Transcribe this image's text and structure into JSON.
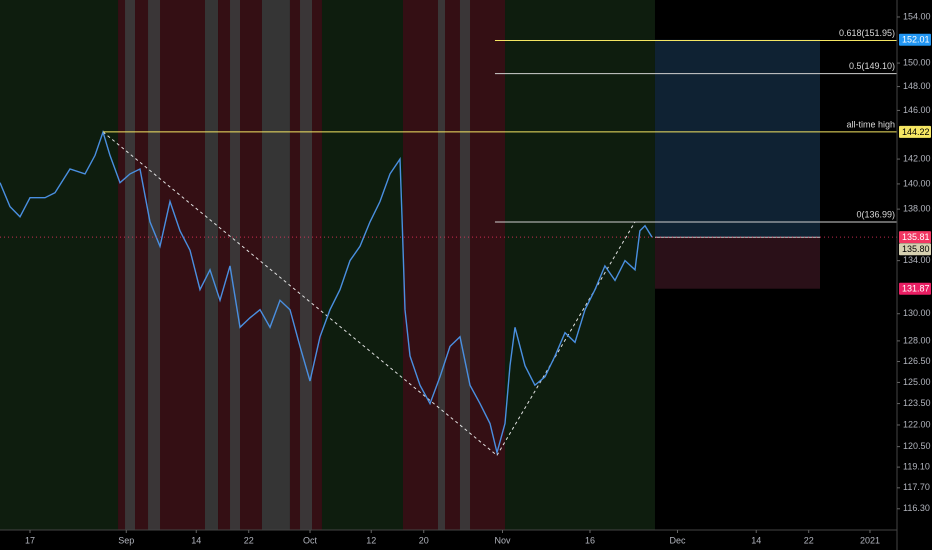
{
  "chart_data": {
    "type": "line",
    "log_scale": true,
    "color": "#4a8fe0",
    "x": [
      -3.43,
      -2.29,
      -1.14,
      0,
      1.71,
      2.86,
      4.57,
      6.29,
      7.43,
      8.34,
      9.14,
      10.29,
      11.43,
      12.57,
      13.71,
      14.86,
      16,
      17.14,
      18.29,
      19.43,
      20.57,
      21.71,
      22.86,
      24,
      25.14,
      26.29,
      27.43,
      28.57,
      29.71,
      30.86,
      32,
      33.14,
      34.29,
      35.43,
      36.57,
      37.71,
      38.86,
      40,
      41.14,
      42.29,
      42.51,
      42.86,
      43.43,
      44.57,
      45.71,
      46.86,
      48,
      49.14,
      50.29,
      51.43,
      52.57,
      53.37,
      54.29,
      54.86,
      55.43,
      56.57,
      57.71,
      58.86,
      60,
      61.14,
      62.29,
      63.43,
      64.57,
      65.71,
      66.86,
      68,
      69.14,
      69.71,
      70.29,
      71.09
    ],
    "values": [
      140.1,
      138.2,
      137.4,
      138.9,
      138.9,
      139.3,
      141.2,
      140.8,
      142.3,
      144.2,
      142.3,
      140.1,
      140.8,
      141.2,
      137.0,
      135.1,
      138.6,
      136.3,
      134.8,
      131.8,
      133.3,
      131.0,
      133.6,
      129.0,
      129.7,
      130.3,
      129.0,
      131.0,
      130.3,
      127.6,
      125.1,
      128.3,
      130.3,
      131.8,
      134.0,
      135.1,
      137.0,
      138.6,
      140.8,
      142.0,
      137.4,
      130.3,
      126.9,
      124.8,
      123.5,
      125.4,
      127.6,
      128.3,
      124.8,
      123.5,
      122.1,
      120.1,
      122.1,
      126.2,
      129.0,
      126.2,
      124.8,
      125.4,
      126.9,
      128.6,
      127.9,
      130.3,
      131.8,
      133.6,
      132.5,
      134.0,
      133.3,
      136.3,
      136.7,
      135.81
    ],
    "xlim": [
      -3.43,
      99.09
    ],
    "ylim": [
      114.9,
      155.5
    ],
    "xticks": [
      {
        "value": 0,
        "label": "17"
      },
      {
        "value": 11,
        "label": "Sep"
      },
      {
        "value": 19,
        "label": "14"
      },
      {
        "value": 25,
        "label": "22"
      },
      {
        "value": 32,
        "label": "Oct"
      },
      {
        "value": 39,
        "label": "12"
      },
      {
        "value": 45,
        "label": "20"
      },
      {
        "value": 54,
        "label": "Nov"
      },
      {
        "value": 64,
        "label": "16"
      },
      {
        "value": 74,
        "label": "Dec"
      },
      {
        "value": 83,
        "label": "14"
      },
      {
        "value": 89,
        "label": "22"
      },
      {
        "value": 96,
        "label": "2021"
      }
    ],
    "yticks": [
      {
        "value": 154,
        "label": "154.00"
      },
      {
        "value": 150,
        "label": "150.00"
      },
      {
        "value": 148,
        "label": "148.00"
      },
      {
        "value": 146,
        "label": "146.00"
      },
      {
        "value": 142,
        "label": "142.00"
      },
      {
        "value": 140,
        "label": "140.00"
      },
      {
        "value": 138,
        "label": "138.00"
      },
      {
        "value": 134,
        "label": "134.00"
      },
      {
        "value": 130,
        "label": "130.00"
      },
      {
        "value": 128,
        "label": "128.00"
      },
      {
        "value": 126.5,
        "label": "126.50"
      },
      {
        "value": 125,
        "label": "125.00"
      },
      {
        "value": 123.5,
        "label": "123.50"
      },
      {
        "value": 122,
        "label": "122.00"
      },
      {
        "value": 120.5,
        "label": "120.50"
      },
      {
        "value": 119.1,
        "label": "119.10"
      },
      {
        "value": 117.7,
        "label": "117.70"
      },
      {
        "value": 116.3,
        "label": "116.30"
      }
    ],
    "grid": false,
    "regions": [
      {
        "x_start": -3.43,
        "x_end": 10.06,
        "color": "#0f200f"
      },
      {
        "x_start": 10.06,
        "x_end": 20,
        "color": "#3a1116"
      },
      {
        "x_start": 20,
        "x_end": 21.49,
        "color": "#3b3b3b"
      },
      {
        "x_start": 21.49,
        "x_end": 26.51,
        "color": "#3a1116"
      },
      {
        "x_start": 26.51,
        "x_end": 29.71,
        "color": "#3b3b3b"
      },
      {
        "x_start": 29.71,
        "x_end": 33.37,
        "color": "#3a1116"
      },
      {
        "x_start": 33.37,
        "x_end": 42.63,
        "color": "#0f200f"
      },
      {
        "x_start": 42.63,
        "x_end": 54.29,
        "color": "#3a1116"
      },
      {
        "x_start": 54.29,
        "x_end": 71.43,
        "color": "#0f200f"
      },
      {
        "x_start": 10.86,
        "x_end": 12,
        "color": "#3b3b3b"
      },
      {
        "x_start": 13.49,
        "x_end": 14.86,
        "color": "#3b3b3b"
      },
      {
        "x_start": 22.86,
        "x_end": 24,
        "color": "#3b3b3b"
      },
      {
        "x_start": 30.86,
        "x_end": 32.23,
        "color": "#3b3b3b"
      },
      {
        "x_start": 46.63,
        "x_end": 47.43,
        "color": "#3b3b3b"
      },
      {
        "x_start": 49.14,
        "x_end": 50.29,
        "color": "#3b3b3b"
      }
    ],
    "levels": [
      {
        "label": "all-time high",
        "value": 144.22,
        "x_start": 8.34,
        "color": "#f5e663"
      },
      {
        "label": "0.618(151.95)",
        "value": 151.95,
        "x_start": 53.14,
        "color": "#f5e663"
      },
      {
        "label": "0.5(149.10)",
        "value": 149.1,
        "x_start": 53.14,
        "color": "#d0d0d0"
      },
      {
        "label": "0(136.99)",
        "value": 136.99,
        "x_start": 53.14,
        "color": "#d0d0d0"
      }
    ],
    "position": {
      "x_start": 71.43,
      "x_end": 90.29,
      "entry": 135.8,
      "target": 152.01,
      "stop": 131.87
    },
    "trend_lines": [
      {
        "x": [
          8.34,
          53.37
        ],
        "y": [
          144.22,
          119.9
        ]
      },
      {
        "x": [
          53.37,
          69.14
        ],
        "y": [
          119.9,
          136.99
        ]
      }
    ],
    "price_tags": [
      {
        "value": 152.01,
        "label": "152.01",
        "color": "#2196f3"
      },
      {
        "value": 144.22,
        "label": "144.22",
        "color": "#f5e663"
      },
      {
        "value": 135.81,
        "label": "135.81",
        "color": "#f23662"
      },
      {
        "value": 135.8,
        "label": "135.80",
        "color": "#d6d0b0"
      },
      {
        "value": 131.87,
        "label": "131.87",
        "color": "#e91e63"
      }
    ]
  }
}
